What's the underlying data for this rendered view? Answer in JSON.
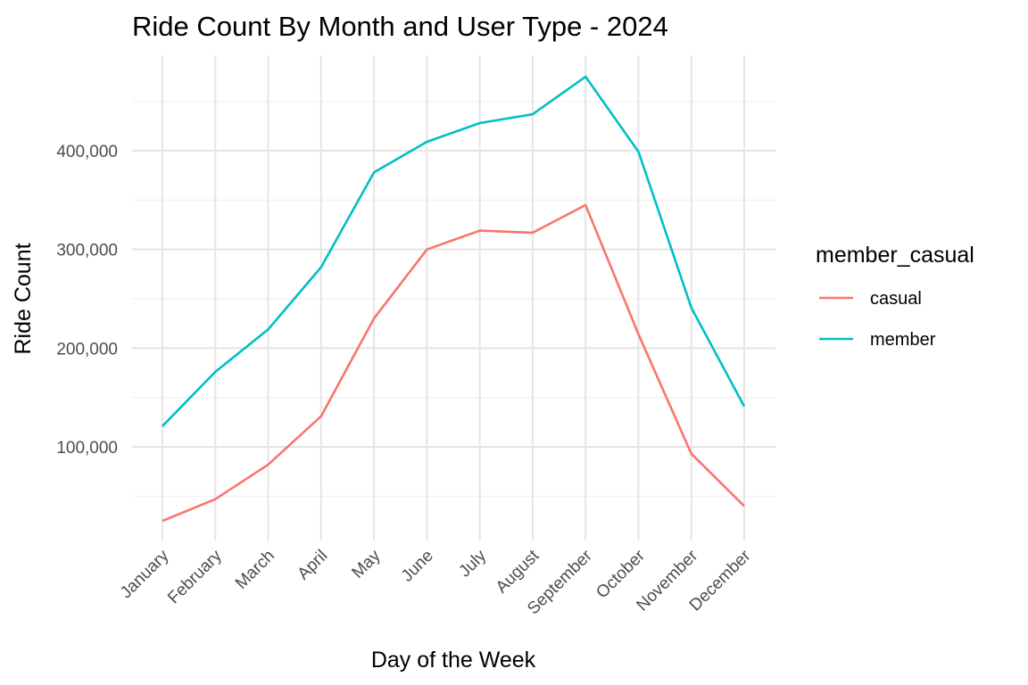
{
  "chart_data": {
    "type": "line",
    "title": "Ride Count By Month and User Type - 2024",
    "xlabel": "Day of the Week",
    "ylabel": "Ride Count",
    "categories": [
      "January",
      "February",
      "March",
      "April",
      "May",
      "June",
      "July",
      "August",
      "September",
      "October",
      "November",
      "December"
    ],
    "ylim": [
      5000,
      490000
    ],
    "yticks": [
      100000,
      200000,
      300000,
      400000
    ],
    "ytick_labels": [
      "100,000",
      "200,000",
      "300,000",
      "400,000"
    ],
    "grid": true,
    "legend": {
      "title": "member_casual",
      "placement": "right"
    },
    "series": [
      {
        "name": "casual",
        "color": "#F8766D",
        "values": [
          25000,
          47000,
          82000,
          131000,
          230000,
          300000,
          319000,
          317000,
          345000,
          214000,
          93000,
          40000
        ]
      },
      {
        "name": "member",
        "color": "#00BFC4",
        "values": [
          121000,
          176000,
          219000,
          282000,
          378000,
          409000,
          428000,
          437000,
          475000,
          399000,
          241000,
          141000
        ]
      }
    ]
  }
}
